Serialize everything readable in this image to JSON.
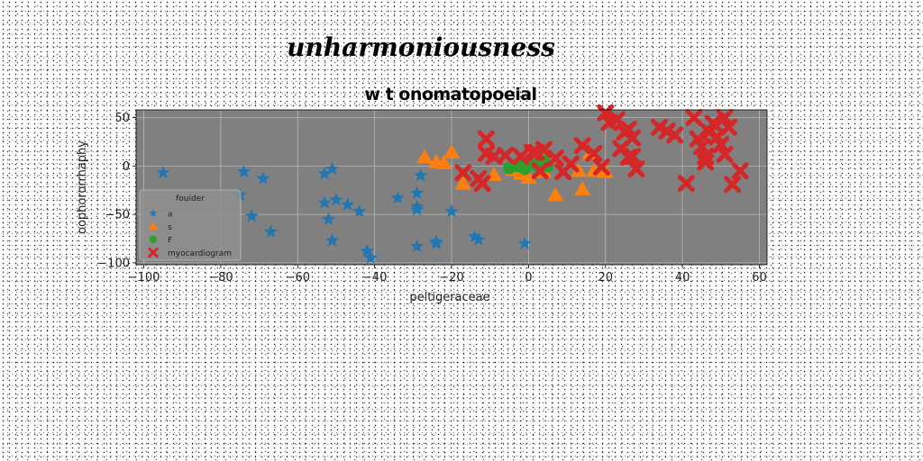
{
  "chart_data": {
    "type": "scatter",
    "suptitle": "unharmoniousness",
    "title": "w t onomatopoeial",
    "xlabel": "peltigeraceae",
    "ylabel": "oophororrhaphy",
    "xlim": [
      -102,
      62
    ],
    "ylim": [
      -102,
      58
    ],
    "xticks": [
      -100,
      -80,
      -60,
      -40,
      -20,
      0,
      20,
      40,
      60
    ],
    "yticks": [
      50,
      0,
      -50,
      -100
    ],
    "xtick_labels": [
      "−100",
      "−80",
      "−60",
      "−40",
      "−20",
      "0",
      "20",
      "40",
      "60"
    ],
    "ytick_labels": [
      "50",
      "0",
      "−50",
      "−100"
    ],
    "grid": true,
    "legend": {
      "placement": "lower-left",
      "title": "fouider"
    },
    "colors": {
      "plot_background": "#808080",
      "grid": "#b8b8b8",
      "a": "#1f77b4",
      "s": "#ff7f0e",
      "F": "#2ca02c",
      "myocardiogram": "#d62728"
    },
    "series": [
      {
        "name": "a",
        "marker": "star",
        "points": [
          [
            -95,
            -7
          ],
          [
            -74,
            -6
          ],
          [
            -69,
            -13
          ],
          [
            -75,
            -30
          ],
          [
            -72,
            -52
          ],
          [
            -67,
            -68
          ],
          [
            -53,
            -8
          ],
          [
            -51,
            -3
          ],
          [
            -53,
            -38
          ],
          [
            -50,
            -35
          ],
          [
            -47,
            -40
          ],
          [
            -44,
            -47
          ],
          [
            -52,
            -55
          ],
          [
            -51,
            -77
          ],
          [
            -42,
            -88
          ],
          [
            -41,
            -95
          ],
          [
            -34,
            -33
          ],
          [
            -29,
            -28
          ],
          [
            -29,
            -42
          ],
          [
            -29,
            -45
          ],
          [
            -28,
            -10
          ],
          [
            -29,
            -83
          ],
          [
            -24,
            -78
          ],
          [
            -24,
            -80
          ],
          [
            -20,
            -47
          ],
          [
            -14,
            -73
          ],
          [
            -13,
            -76
          ],
          [
            -1,
            -80
          ]
        ]
      },
      {
        "name": "s",
        "marker": "triangle",
        "points": [
          [
            -27,
            9
          ],
          [
            -24,
            4
          ],
          [
            -22,
            3
          ],
          [
            -20,
            14
          ],
          [
            -17,
            -18
          ],
          [
            -9,
            -9
          ],
          [
            -4,
            -4
          ],
          [
            -2,
            -8
          ],
          [
            0,
            -12
          ],
          [
            4,
            -6
          ],
          [
            7,
            -30
          ],
          [
            13,
            -5
          ],
          [
            14,
            -24
          ],
          [
            16,
            13
          ],
          [
            17,
            -5
          ],
          [
            19,
            -4
          ],
          [
            20,
            -6
          ]
        ]
      },
      {
        "name": "F",
        "marker": "circle",
        "points": [
          [
            -5,
            -2
          ],
          [
            -3,
            0
          ],
          [
            -2,
            2
          ],
          [
            -1,
            -3
          ],
          [
            0,
            3
          ],
          [
            2,
            1
          ],
          [
            3,
            -2
          ],
          [
            4,
            5
          ],
          [
            5,
            0
          ]
        ]
      },
      {
        "name": "myocardiogram",
        "marker": "x",
        "points": [
          [
            -17,
            -7
          ],
          [
            -12,
            -18
          ],
          [
            -13,
            -13
          ],
          [
            -11,
            28
          ],
          [
            -11,
            13
          ],
          [
            -9,
            10
          ],
          [
            -6,
            11
          ],
          [
            -2,
            10
          ],
          [
            1,
            14
          ],
          [
            2,
            14
          ],
          [
            3,
            -5
          ],
          [
            4,
            17
          ],
          [
            7,
            8
          ],
          [
            9,
            -6
          ],
          [
            11,
            2
          ],
          [
            14,
            21
          ],
          [
            17,
            13
          ],
          [
            19,
            -1
          ],
          [
            20,
            55
          ],
          [
            21,
            45
          ],
          [
            23,
            48
          ],
          [
            24,
            18
          ],
          [
            25,
            35
          ],
          [
            26,
            38
          ],
          [
            27,
            29
          ],
          [
            26,
            9
          ],
          [
            27,
            10
          ],
          [
            28,
            -3
          ],
          [
            34,
            40
          ],
          [
            36,
            36
          ],
          [
            38,
            32
          ],
          [
            41,
            -18
          ],
          [
            43,
            50
          ],
          [
            44,
            28
          ],
          [
            45,
            20
          ],
          [
            46,
            10
          ],
          [
            46,
            4
          ],
          [
            47,
            35
          ],
          [
            48,
            44
          ],
          [
            49,
            30
          ],
          [
            50,
            22
          ],
          [
            51,
            12
          ],
          [
            51,
            50
          ],
          [
            52,
            40
          ],
          [
            53,
            -19
          ],
          [
            55,
            -5
          ]
        ]
      }
    ]
  }
}
